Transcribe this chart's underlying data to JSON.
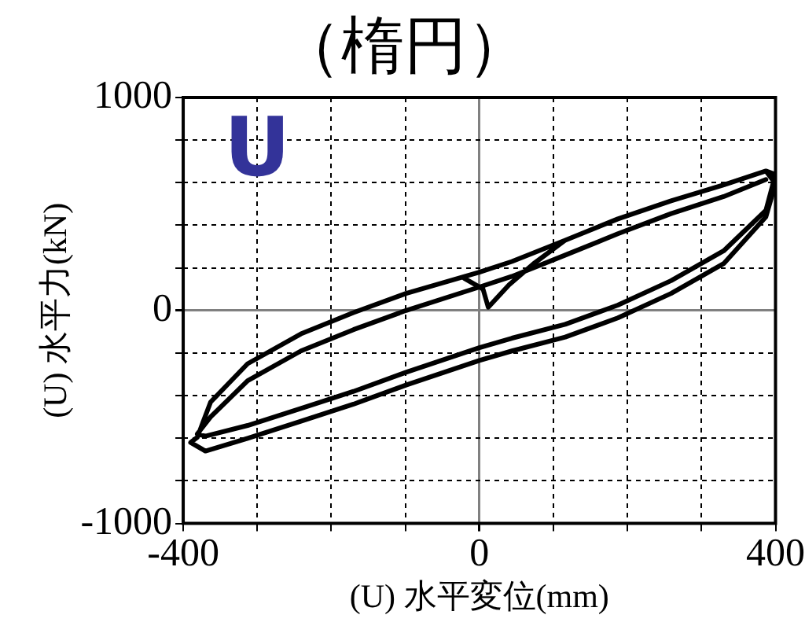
{
  "chart_data": {
    "type": "line",
    "title": "（楕円）",
    "xlabel": "(U) 水平変位(mm)",
    "ylabel": "(U) 水平力(kN)",
    "annotations": [
      "U"
    ],
    "xlim": [
      -400,
      400
    ],
    "xticks": [
      -400,
      {
        "value": -300,
        "label": null
      },
      {
        "value": -200,
        "label": null
      },
      {
        "value": -100,
        "label": null
      },
      0,
      {
        "value": 100,
        "label": null
      },
      {
        "value": 200,
        "label": null
      },
      {
        "value": 300,
        "label": null
      },
      400
    ],
    "ylim": [
      -1000,
      1000
    ],
    "yticks": [
      -1000,
      {
        "value": -800,
        "label": null
      },
      {
        "value": -600,
        "label": null
      },
      {
        "value": -400,
        "label": null
      },
      {
        "value": -200,
        "label": null
      },
      0,
      {
        "value": 200,
        "label": null
      },
      {
        "value": 400,
        "label": null
      },
      {
        "value": 600,
        "label": null
      },
      {
        "value": 800,
        "label": null
      },
      1000
    ],
    "grid": true,
    "marker": "none",
    "line_style": "solid",
    "series": [
      {
        "color": "#000000",
        "x": [
          -20,
          5,
          12,
          40,
          73,
          116,
          187,
          259,
          330,
          387,
          399,
          397,
          387,
          330,
          259,
          187,
          116,
          44,
          0,
          -99,
          -170,
          -241,
          -313,
          -370,
          -390,
          -381,
          -363,
          -313,
          -241,
          -170,
          -99,
          0,
          44,
          116,
          187,
          259,
          330,
          387,
          399,
          397,
          387,
          330,
          259,
          187,
          116,
          44,
          0,
          -99,
          -170,
          -241,
          -313,
          -370,
          -381,
          -363,
          -313,
          -241,
          -170,
          -99,
          0,
          44,
          116,
          187,
          259,
          330,
          387
        ],
        "values": [
          150,
          100,
          15,
          120,
          219,
          330,
          430,
          515,
          590,
          655,
          640,
          560,
          440,
          220,
          80,
          -35,
          -125,
          -190,
          -235,
          -350,
          -440,
          -520,
          -600,
          -660,
          -620,
          -596,
          -430,
          -250,
          -110,
          -10,
          80,
          180,
          230,
          330,
          430,
          515,
          590,
          655,
          600,
          600,
          470,
          280,
          140,
          25,
          -65,
          -130,
          -175,
          -290,
          -380,
          -460,
          -540,
          -590,
          -580,
          -500,
          -330,
          -190,
          -90,
          0,
          110,
          160,
          260,
          360,
          455,
          535,
          615
        ]
      }
    ]
  }
}
